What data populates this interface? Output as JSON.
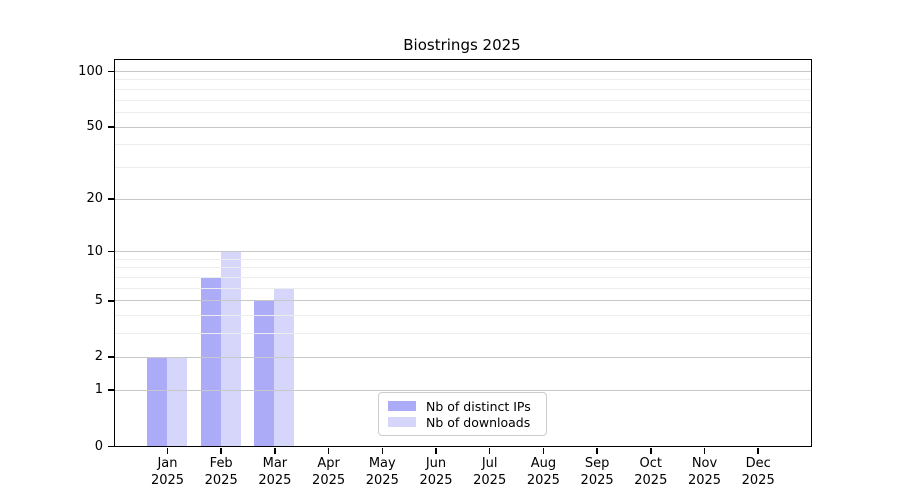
{
  "chart_data": {
    "type": "bar",
    "title": "Biostrings 2025",
    "categories": [
      "Jan",
      "Feb",
      "Mar",
      "Apr",
      "May",
      "Jun",
      "Jul",
      "Aug",
      "Sep",
      "Oct",
      "Nov",
      "Dec"
    ],
    "x_year_label": "2025",
    "series": [
      {
        "name": "Nb of distinct IPs",
        "color": "rgba(68,68,238,0.45)",
        "values": [
          2,
          7,
          5,
          0,
          0,
          0,
          0,
          0,
          0,
          0,
          0,
          0
        ]
      },
      {
        "name": "Nb of downloads",
        "color": "rgba(68,68,238,0.22)",
        "values": [
          2,
          10,
          6,
          0,
          0,
          0,
          0,
          0,
          0,
          0,
          0,
          0
        ]
      }
    ],
    "y_axis": {
      "scale": "log1p",
      "range": [
        0,
        100
      ],
      "tick_values": [
        100,
        50,
        20,
        10,
        5,
        2,
        1,
        0
      ],
      "tick_labels": [
        "100",
        "50",
        "20",
        "10",
        "5",
        "2",
        "1",
        "0"
      ],
      "minor_tick_values": [
        3,
        4,
        6,
        7,
        8,
        9,
        30,
        40,
        60,
        70,
        80,
        90
      ]
    },
    "legend": {
      "position": "bottom-center",
      "entries": [
        "Nb of distinct IPs",
        "Nb of downloads"
      ]
    },
    "grid": {
      "major_color": "#c8c8c8",
      "minor_color": "#ededed"
    },
    "colors": {
      "axis": "#000000",
      "background": "#ffffff"
    }
  }
}
